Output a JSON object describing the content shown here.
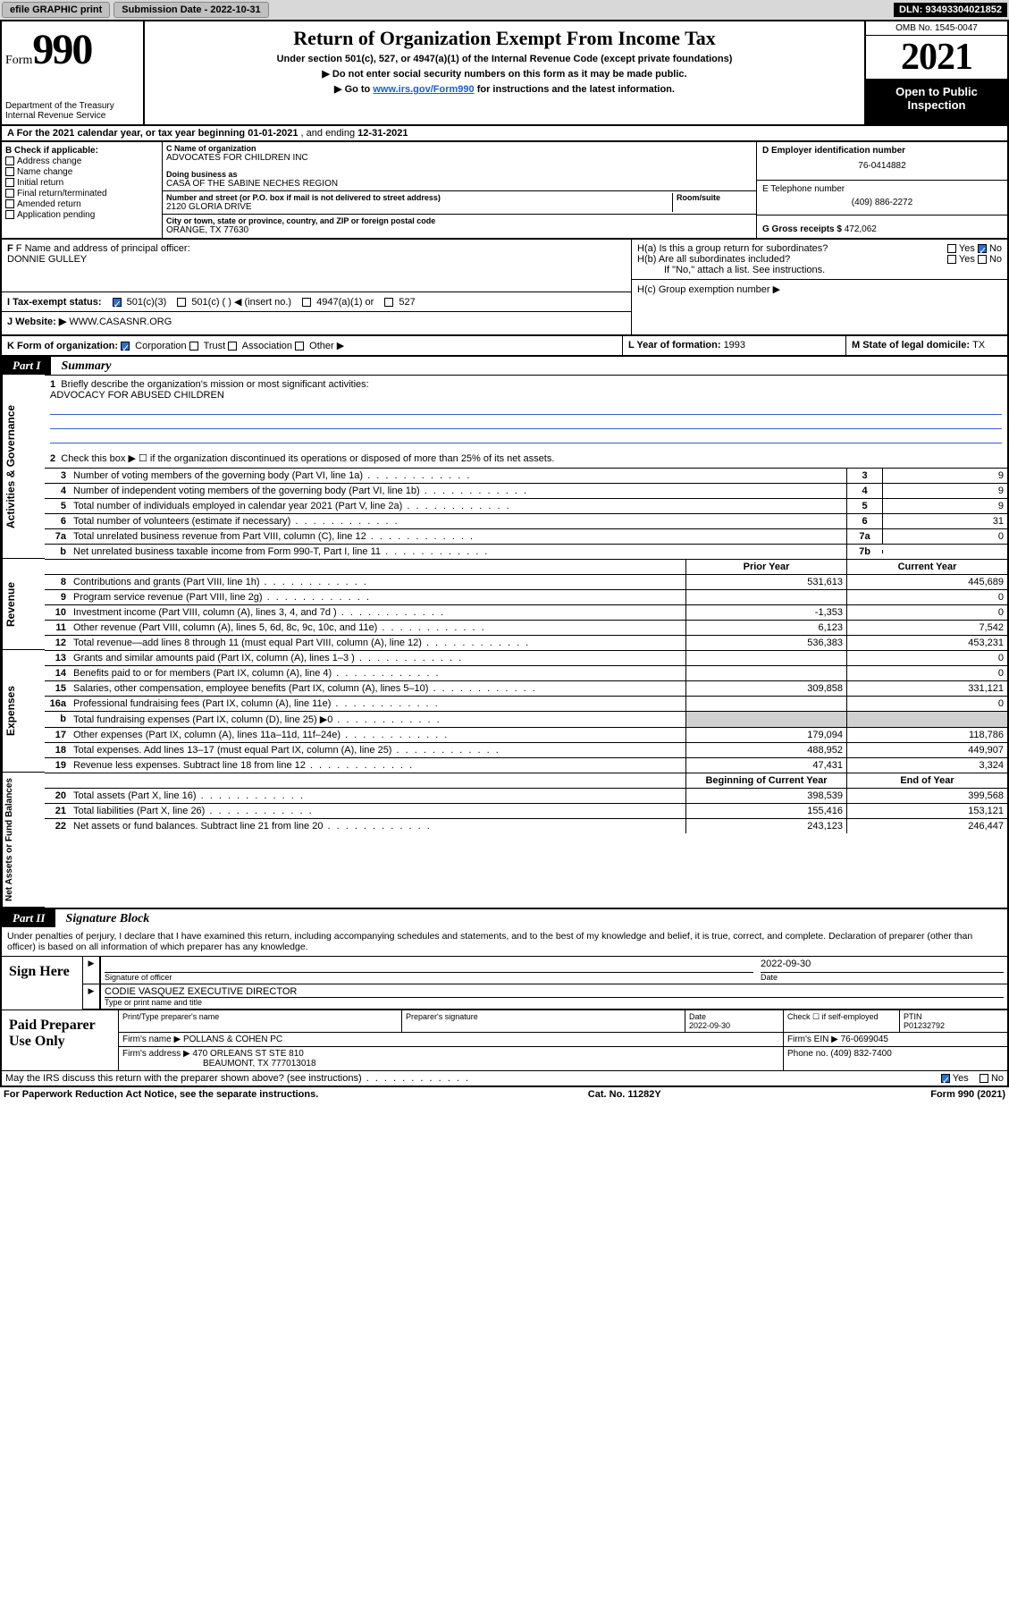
{
  "topbar": {
    "efile": "efile GRAPHIC print",
    "sub_label": "Submission Date - ",
    "sub_date": "2022-10-31",
    "dln_label": "DLN: ",
    "dln": "93493304021852"
  },
  "header": {
    "form_word": "Form",
    "form_num": "990",
    "dept": "Department of the Treasury\nInternal Revenue Service",
    "title": "Return of Organization Exempt From Income Tax",
    "sub1": "Under section 501(c), 527, or 4947(a)(1) of the Internal Revenue Code (except private foundations)",
    "sub2": "Do not enter social security numbers on this form as it may be made public.",
    "sub3_pre": "Go to ",
    "sub3_link": "www.irs.gov/Form990",
    "sub3_post": " for instructions and the latest information.",
    "omb": "OMB No. 1545-0047",
    "year": "2021",
    "inspect": "Open to Public Inspection"
  },
  "row_a": {
    "text_pre": "A For the 2021 calendar year, or tax year beginning ",
    "begin": "01-01-2021",
    "mid": " , and ending ",
    "end": "12-31-2021"
  },
  "section_b": {
    "label": "B Check if applicable:",
    "items": [
      "Address change",
      "Name change",
      "Initial return",
      "Final return/terminated",
      "Amended return",
      "Application pending"
    ]
  },
  "section_c": {
    "name_label": "C Name of organization",
    "name": "ADVOCATES FOR CHILDREN INC",
    "dba_label": "Doing business as",
    "dba": "CASA OF THE SABINE NECHES REGION",
    "addr_label": "Number and street (or P.O. box if mail is not delivered to street address)",
    "room_label": "Room/suite",
    "addr": "2120 GLORIA DRIVE",
    "city_label": "City or town, state or province, country, and ZIP or foreign postal code",
    "city": "ORANGE, TX  77630"
  },
  "section_d": {
    "ein_label": "D Employer identification number",
    "ein": "76-0414882",
    "tel_label": "E Telephone number",
    "tel": "(409) 886-2272",
    "gross_label": "G Gross receipts $ ",
    "gross": "472,062"
  },
  "section_f": {
    "label": "F Name and address of principal officer:",
    "name": "DONNIE GULLEY"
  },
  "section_h": {
    "ha": "H(a)  Is this a group return for subordinates?",
    "ha_yes": "Yes",
    "ha_no": "No",
    "hb": "H(b)  Are all subordinates included?",
    "hb_yes": "Yes",
    "hb_no": "No",
    "hb_note": "If \"No,\" attach a list. See instructions.",
    "hc": "H(c)  Group exemption number ▶"
  },
  "section_i": {
    "label": "I  Tax-exempt status:",
    "opt1": "501(c)(3)",
    "opt2": "501(c) (  ) ◀ (insert no.)",
    "opt3": "4947(a)(1) or",
    "opt4": "527"
  },
  "section_j": {
    "label": "J  Website: ▶",
    "value": "WWW.CASASNR.ORG"
  },
  "section_k": {
    "label": "K Form of organization:",
    "opts": [
      "Corporation",
      "Trust",
      "Association",
      "Other ▶"
    ]
  },
  "section_l": {
    "label": "L Year of formation: ",
    "value": "1993"
  },
  "section_m": {
    "label": "M State of legal domicile: ",
    "value": "TX"
  },
  "part1": {
    "hdr": "Part I",
    "title": "Summary",
    "line1_label": "Briefly describe the organization's mission or most significant activities:",
    "line1_value": "ADVOCACY FOR ABUSED CHILDREN",
    "line2": "Check this box ▶ ☐  if the organization discontinued its operations or disposed of more than 25% of its net assets.",
    "vlabels": [
      "Activities & Governance",
      "Revenue",
      "Expenses",
      "Net Assets or Fund Balances"
    ],
    "gov_rows": [
      {
        "n": "3",
        "lbl": "Number of voting members of the governing body (Part VI, line 1a)",
        "box": "3",
        "val": "9"
      },
      {
        "n": "4",
        "lbl": "Number of independent voting members of the governing body (Part VI, line 1b)",
        "box": "4",
        "val": "9"
      },
      {
        "n": "5",
        "lbl": "Total number of individuals employed in calendar year 2021 (Part V, line 2a)",
        "box": "5",
        "val": "9"
      },
      {
        "n": "6",
        "lbl": "Total number of volunteers (estimate if necessary)",
        "box": "6",
        "val": "31"
      },
      {
        "n": "7a",
        "lbl": "Total unrelated business revenue from Part VIII, column (C), line 12",
        "box": "7a",
        "val": "0"
      },
      {
        "n": "b",
        "lbl": "Net unrelated business taxable income from Form 990-T, Part I, line 11",
        "box": "7b",
        "val": ""
      }
    ],
    "col_hdr_py": "Prior Year",
    "col_hdr_cy": "Current Year",
    "rev_rows": [
      {
        "n": "8",
        "lbl": "Contributions and grants (Part VIII, line 1h)",
        "py": "531,613",
        "cy": "445,689"
      },
      {
        "n": "9",
        "lbl": "Program service revenue (Part VIII, line 2g)",
        "py": "",
        "cy": "0"
      },
      {
        "n": "10",
        "lbl": "Investment income (Part VIII, column (A), lines 3, 4, and 7d )",
        "py": "-1,353",
        "cy": "0"
      },
      {
        "n": "11",
        "lbl": "Other revenue (Part VIII, column (A), lines 5, 6d, 8c, 9c, 10c, and 11e)",
        "py": "6,123",
        "cy": "7,542"
      },
      {
        "n": "12",
        "lbl": "Total revenue—add lines 8 through 11 (must equal Part VIII, column (A), line 12)",
        "py": "536,383",
        "cy": "453,231"
      }
    ],
    "exp_rows": [
      {
        "n": "13",
        "lbl": "Grants and similar amounts paid (Part IX, column (A), lines 1–3 )",
        "py": "",
        "cy": "0"
      },
      {
        "n": "14",
        "lbl": "Benefits paid to or for members (Part IX, column (A), line 4)",
        "py": "",
        "cy": "0"
      },
      {
        "n": "15",
        "lbl": "Salaries, other compensation, employee benefits (Part IX, column (A), lines 5–10)",
        "py": "309,858",
        "cy": "331,121"
      },
      {
        "n": "16a",
        "lbl": "Professional fundraising fees (Part IX, column (A), line 11e)",
        "py": "",
        "cy": "0"
      },
      {
        "n": "b",
        "lbl": "Total fundraising expenses (Part IX, column (D), line 25) ▶0",
        "py": "shade",
        "cy": "shade"
      },
      {
        "n": "17",
        "lbl": "Other expenses (Part IX, column (A), lines 11a–11d, 11f–24e)",
        "py": "179,094",
        "cy": "118,786"
      },
      {
        "n": "18",
        "lbl": "Total expenses. Add lines 13–17 (must equal Part IX, column (A), line 25)",
        "py": "488,952",
        "cy": "449,907"
      },
      {
        "n": "19",
        "lbl": "Revenue less expenses. Subtract line 18 from line 12",
        "py": "47,431",
        "cy": "3,324"
      }
    ],
    "net_hdr_py": "Beginning of Current Year",
    "net_hdr_cy": "End of Year",
    "net_rows": [
      {
        "n": "20",
        "lbl": "Total assets (Part X, line 16)",
        "py": "398,539",
        "cy": "399,568"
      },
      {
        "n": "21",
        "lbl": "Total liabilities (Part X, line 26)",
        "py": "155,416",
        "cy": "153,121"
      },
      {
        "n": "22",
        "lbl": "Net assets or fund balances. Subtract line 21 from line 20",
        "py": "243,123",
        "cy": "246,447"
      }
    ]
  },
  "part2": {
    "hdr": "Part II",
    "title": "Signature Block",
    "penalties": "Under penalties of perjury, I declare that I have examined this return, including accompanying schedules and statements, and to the best of my knowledge and belief, it is true, correct, and complete. Declaration of preparer (other than officer) is based on all information of which preparer has any knowledge.",
    "sign_here": "Sign Here",
    "sig_officer_label": "Signature of officer",
    "date_label": "Date",
    "sig_date": "2022-09-30",
    "officer_name": "CODIE VASQUEZ  EXECUTIVE DIRECTOR",
    "type_label": "Type or print name and title",
    "paid_label": "Paid Preparer Use Only",
    "prep_name_label": "Print/Type preparer's name",
    "prep_sig_label": "Preparer's signature",
    "prep_date_label": "Date",
    "prep_date": "2022-09-30",
    "check_if": "Check ☐ if self-employed",
    "ptin_label": "PTIN",
    "ptin": "P01232792",
    "firm_name_label": "Firm's name    ▶ ",
    "firm_name": "POLLANS & COHEN PC",
    "firm_ein_label": "Firm's EIN ▶ ",
    "firm_ein": "76-0699045",
    "firm_addr_label": "Firm's address ▶ ",
    "firm_addr": "470 ORLEANS ST STE 810",
    "firm_city": "BEAUMONT, TX  777013018",
    "phone_label": "Phone no. ",
    "phone": "(409) 832-7400",
    "may_discuss": "May the IRS discuss this return with the preparer shown above? (see instructions)",
    "may_yes": "Yes",
    "may_no": "No"
  },
  "footer": {
    "left": "For Paperwork Reduction Act Notice, see the separate instructions.",
    "mid": "Cat. No. 11282Y",
    "right": "Form 990 (2021)"
  }
}
